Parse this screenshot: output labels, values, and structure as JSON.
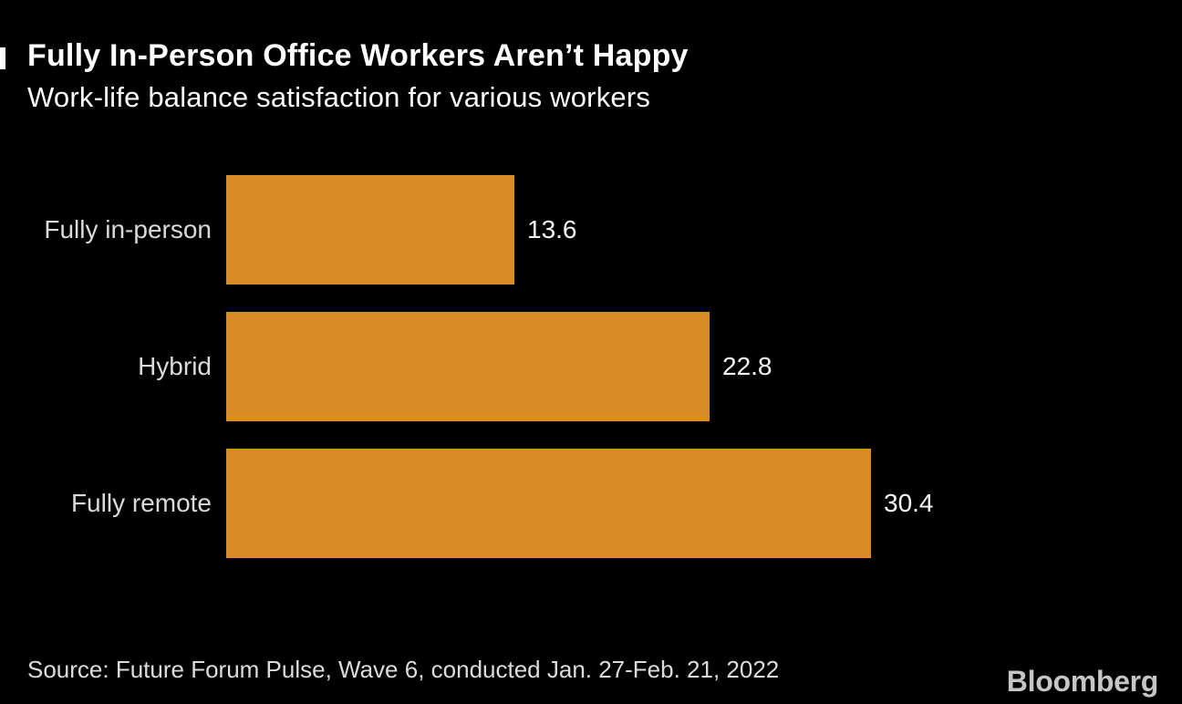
{
  "header": {
    "title": "Fully In-Person Office Workers Aren’t Happy",
    "subtitle": "Work-life balance satisfaction for various workers"
  },
  "chart_data": {
    "type": "bar",
    "orientation": "horizontal",
    "title": "Fully In-Person Office Workers Aren’t Happy",
    "subtitle": "Work-life balance satisfaction for various workers",
    "categories": [
      "Fully in-person",
      "Hybrid",
      "Fully remote"
    ],
    "values": [
      13.6,
      22.8,
      30.4
    ],
    "value_labels": [
      "13.6",
      "22.8",
      "30.4"
    ],
    "xlabel": "",
    "ylabel": "",
    "xlim": [
      0,
      30.4
    ],
    "grid": false,
    "legend": "none",
    "data_label_position": "outside-end",
    "bar_color": "#d98b28"
  },
  "footer": {
    "source": "Source: Future Forum Pulse, Wave 6, conducted Jan. 27-Feb. 21, 2022",
    "brand": "Bloomberg"
  },
  "colors": {
    "background": "#000000",
    "title": "#ffffff",
    "subtitle": "#fbfbf9",
    "bar": "#d98b28",
    "category_label": "#dadad8",
    "value_label": "#f6f6f4",
    "source": "#dcdcda",
    "brand": "#c6c6c6"
  }
}
